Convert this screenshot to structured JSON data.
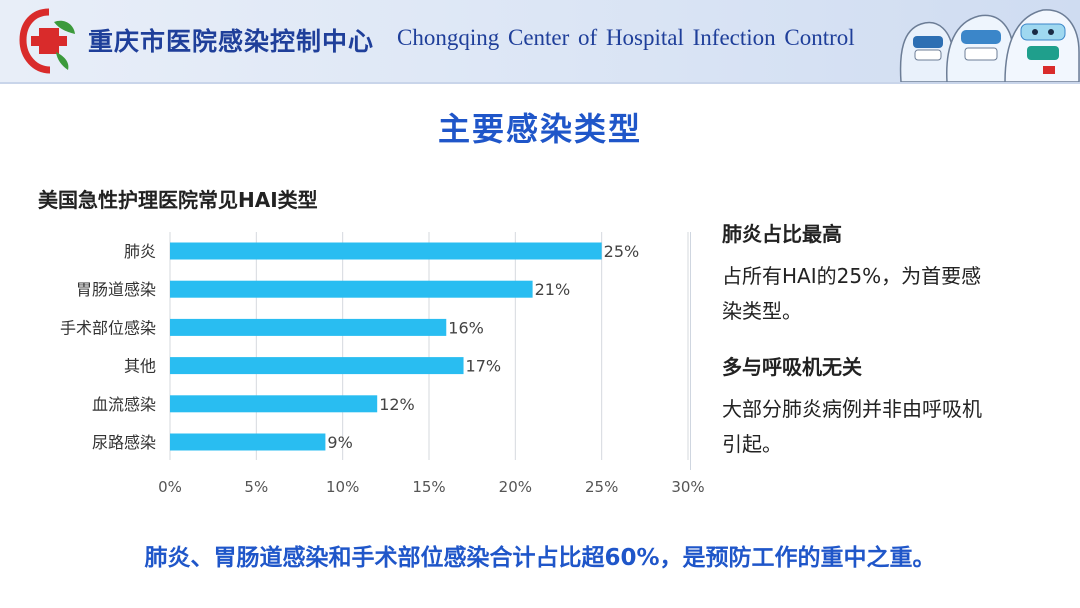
{
  "header": {
    "org_name_cn": "重庆市医院感染控制中心",
    "org_name_en": "Chongqing  Center of  Hospital Infection  Control",
    "logo_icon": "hospital-cross-logo-icon",
    "mascot_icon": "protective-suit-staff-illustration-icon"
  },
  "slide": {
    "title": "主要感染类型"
  },
  "chart_data": {
    "type": "bar",
    "orientation": "horizontal",
    "title": "美国急性护理医院常见HAI类型",
    "categories": [
      "肺炎",
      "胃肠道感染",
      "手术部位感染",
      "其他",
      "血流感染",
      "尿路感染"
    ],
    "values": [
      25,
      21,
      16,
      17,
      12,
      9
    ],
    "value_labels": [
      "25%",
      "21%",
      "16%",
      "17%",
      "12%",
      "9%"
    ],
    "xlim": [
      0,
      30
    ],
    "x_ticks": [
      0,
      5,
      10,
      15,
      20,
      25,
      30
    ],
    "x_tick_labels": [
      "0%",
      "5%",
      "10%",
      "15%",
      "20%",
      "25%",
      "30%"
    ],
    "grid": "vertical",
    "bar_color": "#29bdf1"
  },
  "side_panel": {
    "blocks": [
      {
        "heading": "肺炎占比最高",
        "lines": [
          "占所有HAI的25%，为首要感",
          "染类型。"
        ]
      },
      {
        "heading": "多与呼吸机无关",
        "lines": [
          "大部分肺炎病例并非由呼吸机",
          "引起。"
        ]
      }
    ]
  },
  "footer": {
    "note": "肺炎、胃肠道感染和手术部位感染合计占比超60%，是预防工作的重中之重。"
  },
  "colors": {
    "accent_blue": "#1f56c9",
    "header_blue": "#1f3f9a",
    "logo_red": "#d92b2b",
    "logo_green": "#3c9a3c"
  }
}
